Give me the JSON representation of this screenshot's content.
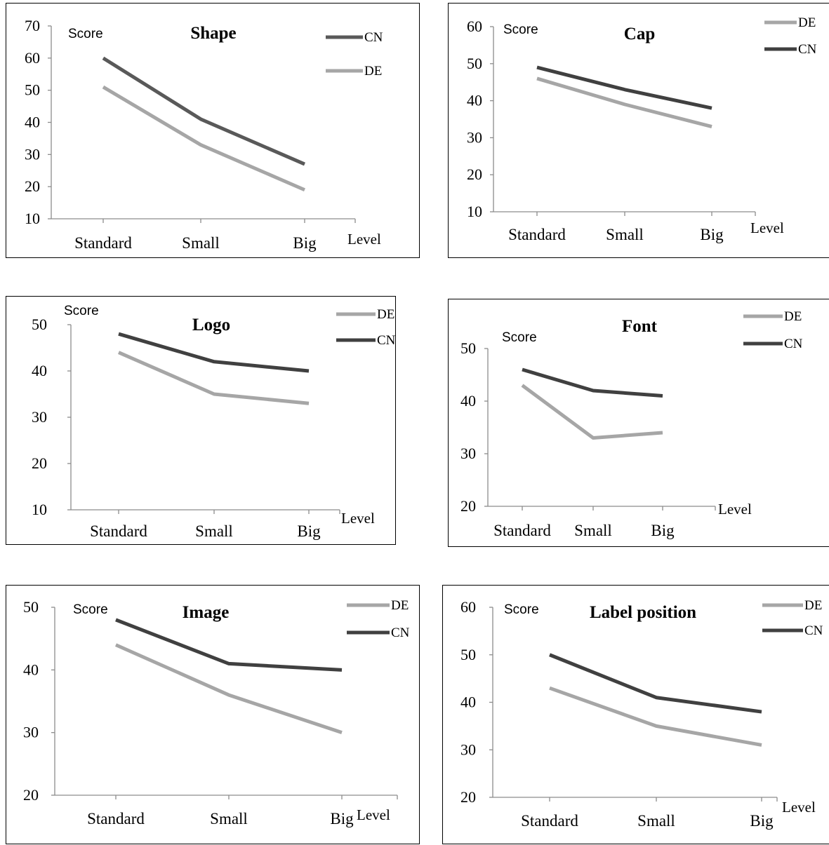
{
  "chart_data": [
    {
      "type": "line",
      "title": "Shape",
      "ylabel": "Score",
      "xlabel": "Level",
      "categories": [
        "Standard",
        "Small",
        "Big"
      ],
      "ylim": [
        10,
        70
      ],
      "yticks": [
        10,
        20,
        30,
        40,
        50,
        60,
        70
      ],
      "legend": [
        "CN",
        "DE"
      ],
      "series": [
        {
          "name": "CN",
          "color": "#595959",
          "values": [
            60,
            41,
            27
          ]
        },
        {
          "name": "DE",
          "color": "#a6a6a6",
          "values": [
            51,
            33,
            19
          ]
        }
      ]
    },
    {
      "type": "line",
      "title": "Cap",
      "ylabel": "Score",
      "xlabel": "Level",
      "categories": [
        "Standard",
        "Small",
        "Big"
      ],
      "ylim": [
        10,
        60
      ],
      "yticks": [
        10,
        20,
        30,
        40,
        50,
        60
      ],
      "legend": [
        "DE",
        "CN"
      ],
      "series": [
        {
          "name": "DE",
          "color": "#a6a6a6",
          "values": [
            46,
            39,
            33
          ]
        },
        {
          "name": "CN",
          "color": "#404040",
          "values": [
            49,
            43,
            38
          ]
        }
      ]
    },
    {
      "type": "line",
      "title": "Logo",
      "ylabel": "Score",
      "xlabel": "Level",
      "categories": [
        "Standard",
        "Small",
        "Big"
      ],
      "ylim": [
        10,
        50
      ],
      "yticks": [
        10,
        20,
        30,
        40,
        50
      ],
      "legend": [
        "DE",
        "CN"
      ],
      "series": [
        {
          "name": "DE",
          "color": "#a6a6a6",
          "values": [
            44,
            35,
            33
          ]
        },
        {
          "name": "CN",
          "color": "#404040",
          "values": [
            48,
            42,
            40
          ]
        }
      ]
    },
    {
      "type": "line",
      "title": "Font",
      "ylabel": "Score",
      "xlabel": "Level",
      "categories": [
        "Standard",
        "Small",
        "Big"
      ],
      "ylim": [
        20,
        50
      ],
      "yticks": [
        20,
        30,
        40,
        50
      ],
      "legend": [
        "DE",
        "CN"
      ],
      "series": [
        {
          "name": "DE",
          "color": "#a6a6a6",
          "values": [
            43,
            33,
            34
          ]
        },
        {
          "name": "CN",
          "color": "#404040",
          "values": [
            46,
            42,
            41
          ]
        }
      ]
    },
    {
      "type": "line",
      "title": "Image",
      "ylabel": "Score",
      "xlabel": "Level",
      "categories": [
        "Standard",
        "Small",
        "Big"
      ],
      "ylim": [
        20,
        50
      ],
      "yticks": [
        20,
        30,
        40,
        50
      ],
      "legend": [
        "DE",
        "CN"
      ],
      "series": [
        {
          "name": "DE",
          "color": "#a6a6a6",
          "values": [
            44,
            36,
            30
          ]
        },
        {
          "name": "CN",
          "color": "#404040",
          "values": [
            48,
            41,
            40
          ]
        }
      ]
    },
    {
      "type": "line",
      "title": "Label position",
      "ylabel": "Score",
      "xlabel": "Level",
      "categories": [
        "Standard",
        "Small",
        "Big"
      ],
      "ylim": [
        20,
        60
      ],
      "yticks": [
        20,
        30,
        40,
        50,
        60
      ],
      "legend": [
        "DE",
        "CN"
      ],
      "series": [
        {
          "name": "DE",
          "color": "#a6a6a6",
          "values": [
            43,
            35,
            31
          ]
        },
        {
          "name": "CN",
          "color": "#404040",
          "values": [
            50,
            41,
            38
          ]
        }
      ]
    }
  ]
}
